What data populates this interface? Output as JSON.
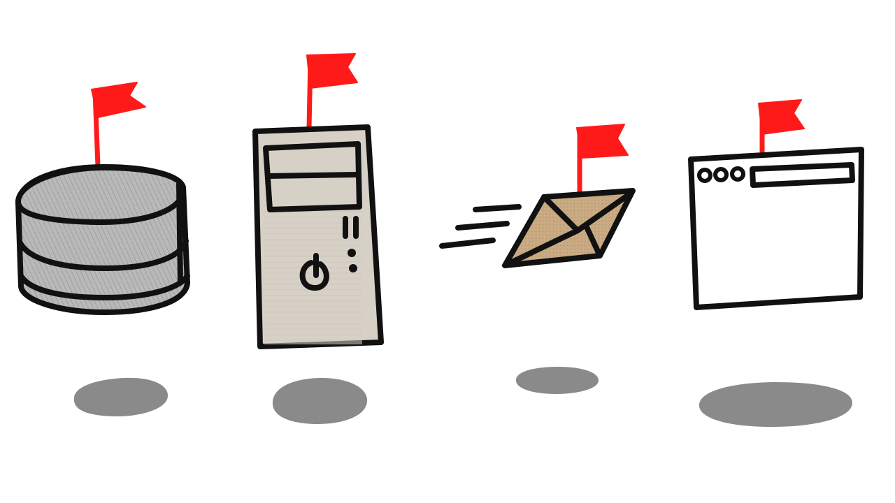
{
  "palette": {
    "background": "#ffffff",
    "outline": "#111111",
    "flag": "#ff1a1a",
    "shadow": "#8a8a8a",
    "database_fill": "#b9b9b9",
    "server_fill": "#d6d0c6",
    "envelope_fill": "#c8a982",
    "window_fill": "#ffffff"
  },
  "items": [
    {
      "id": "database",
      "icon": "database-icon",
      "flagged": true
    },
    {
      "id": "server",
      "icon": "server-tower-icon",
      "flagged": true
    },
    {
      "id": "email",
      "icon": "envelope-icon",
      "flagged": true,
      "in_motion": true
    },
    {
      "id": "browser",
      "icon": "browser-window-icon",
      "flagged": true
    }
  ]
}
